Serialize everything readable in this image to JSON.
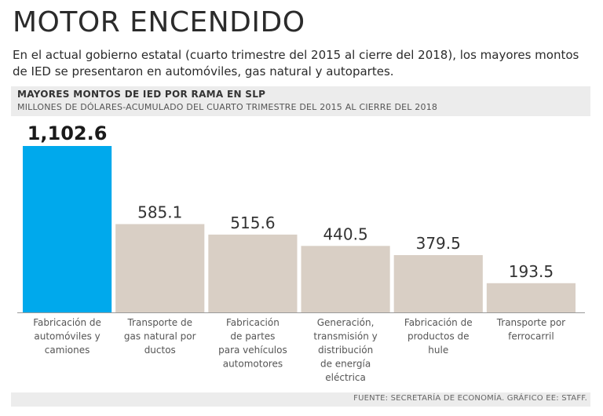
{
  "title": "MOTOR ENCENDIDO",
  "lede": "En el actual gobierno estatal (cuarto trimestre del 2015 al cierre del 2018), los mayores montos de IED se presentaron en automóviles, gas natural y autopartes.",
  "source": "FUENTE: SECRETARÍA DE ECONOMÍA. GRÁFICO EE: STAFF.",
  "colors": {
    "highlight": "#00a9ec",
    "bar": "#d9cfc5",
    "axis": "#9a9a9a"
  },
  "chart_data": {
    "type": "bar",
    "title": "MAYORES MONTOS  DE IED POR RAMA EN SLP",
    "subtitle": "MILLONES DE DÓLARES-ACUMULADO DEL CUARTO TRIMESTRE DEL 2015 AL CIERRE DEL 2018",
    "categories": [
      [
        "Fabricación de",
        "automóviles y",
        "camiones"
      ],
      [
        "Transporte de",
        "gas natural por",
        "ductos"
      ],
      [
        "Fabricación",
        "de partes",
        "para vehículos",
        "automotores"
      ],
      [
        "Generación,",
        "transmisión y",
        "distribución",
        "de energía",
        "eléctrica"
      ],
      [
        "Fabricación de",
        "productos de",
        "hule"
      ],
      [
        "Transporte por",
        "ferrocarril"
      ]
    ],
    "values": [
      1102.6,
      585.1,
      515.6,
      440.5,
      379.5,
      193.5
    ],
    "value_labels": [
      "1,102.6",
      "585.1",
      "515.6",
      "440.5",
      "379.5",
      "193.5"
    ],
    "highlight_index": 0,
    "ylim": [
      0,
      1102.6
    ],
    "grid": false,
    "legend": "none"
  }
}
